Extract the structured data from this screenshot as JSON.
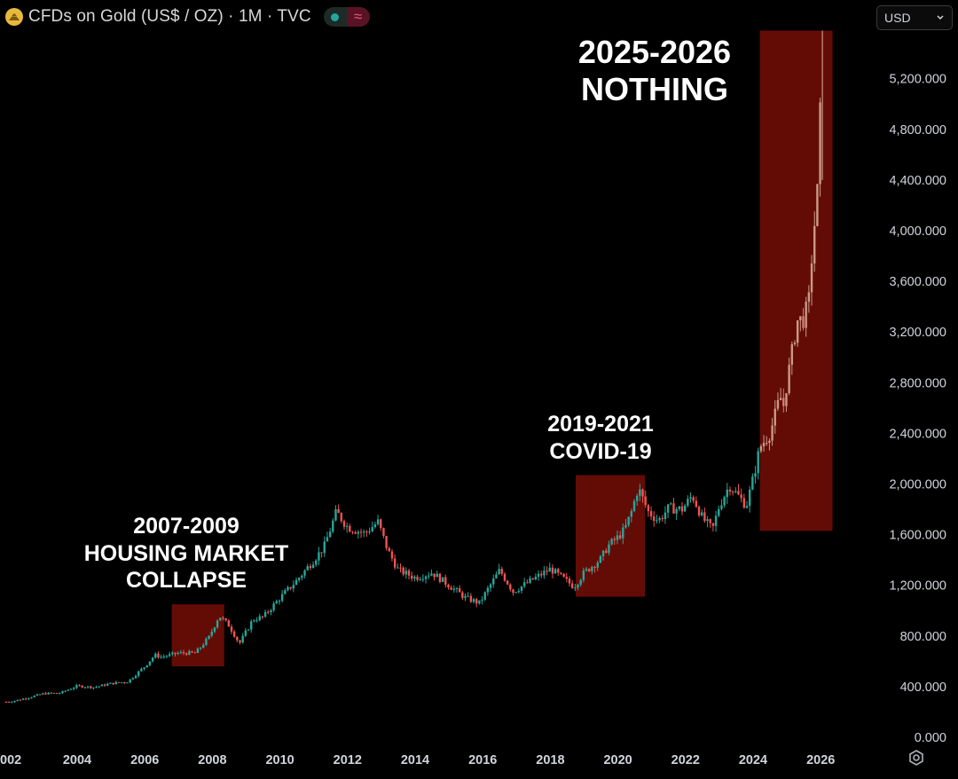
{
  "header": {
    "title": "CFDs on Gold (US$ / OZ) · 1M · TVC",
    "currency": "USD"
  },
  "colors": {
    "up": "#26a69a",
    "down": "#ef5350",
    "highlight": "#6e0d07",
    "background": "#000000",
    "axis_text": "#d1d4dc"
  },
  "icons": [
    "gold-logo-icon",
    "green-dot-icon",
    "wave-icon",
    "chevron-down-icon",
    "settings-icon"
  ],
  "chart_data": {
    "type": "candlestick",
    "interval": "1M",
    "y_ticks": [
      "0.000",
      "400.000",
      "800.000",
      "1,200.000",
      "1,600.000",
      "2,000.000",
      "2,400.000",
      "2,800.000",
      "3,200.000",
      "3,600.000",
      "4,000.000",
      "4,400.000",
      "4,800.000",
      "5,200.000"
    ],
    "x_ticks": [
      "002",
      "2004",
      "2006",
      "2008",
      "2010",
      "2012",
      "2014",
      "2016",
      "2018",
      "2020",
      "2022",
      "2024",
      "2026"
    ],
    "ylim": [
      0,
      5600
    ],
    "series": [
      {
        "values": [
          [
            2002.0,
            280
          ],
          [
            2002.5,
            310
          ],
          [
            2003.0,
            345
          ],
          [
            2003.5,
            350
          ],
          [
            2004.0,
            405
          ],
          [
            2004.5,
            395
          ],
          [
            2005.0,
            425
          ],
          [
            2005.5,
            440
          ],
          [
            2006.0,
            560
          ],
          [
            2006.3,
            650
          ],
          [
            2006.5,
            635
          ],
          [
            2007.0,
            665
          ],
          [
            2007.5,
            665
          ],
          [
            2007.9,
            790
          ],
          [
            2008.2,
            960
          ],
          [
            2008.5,
            880
          ],
          [
            2008.8,
            740
          ],
          [
            2009.2,
            930
          ],
          [
            2009.5,
            950
          ],
          [
            2010.0,
            1100
          ],
          [
            2010.5,
            1240
          ],
          [
            2011.0,
            1400
          ],
          [
            2011.3,
            1500
          ],
          [
            2011.67,
            1780
          ],
          [
            2012.0,
            1660
          ],
          [
            2012.5,
            1610
          ],
          [
            2012.9,
            1700
          ],
          [
            2013.2,
            1470
          ],
          [
            2013.5,
            1320
          ],
          [
            2014.0,
            1260
          ],
          [
            2014.5,
            1300
          ],
          [
            2015.0,
            1200
          ],
          [
            2015.5,
            1100
          ],
          [
            2015.9,
            1060
          ],
          [
            2016.5,
            1320
          ],
          [
            2016.9,
            1150
          ],
          [
            2017.5,
            1250
          ],
          [
            2018.0,
            1330
          ],
          [
            2018.7,
            1190
          ],
          [
            2019.0,
            1300
          ],
          [
            2019.5,
            1410
          ],
          [
            2019.7,
            1510
          ],
          [
            2020.0,
            1580
          ],
          [
            2020.2,
            1640
          ],
          [
            2020.4,
            1780
          ],
          [
            2020.6,
            1970
          ],
          [
            2020.9,
            1780
          ],
          [
            2021.2,
            1710
          ],
          [
            2021.5,
            1810
          ],
          [
            2021.9,
            1800
          ],
          [
            2022.2,
            1910
          ],
          [
            2022.5,
            1730
          ],
          [
            2022.8,
            1640
          ],
          [
            2023.0,
            1830
          ],
          [
            2023.3,
            1990
          ],
          [
            2023.8,
            1830
          ],
          [
            2024.0,
            2040
          ],
          [
            2024.2,
            2290
          ],
          [
            2024.5,
            2400
          ],
          [
            2024.8,
            2690
          ],
          [
            2024.9,
            2620
          ],
          [
            2025.0,
            2800
          ],
          [
            2025.2,
            3120
          ],
          [
            2025.3,
            3290
          ],
          [
            2025.5,
            3300
          ],
          [
            2025.65,
            3450
          ],
          [
            2025.75,
            3850
          ],
          [
            2025.8,
            4000
          ],
          [
            2025.9,
            4300
          ],
          [
            2025.95,
            4350
          ],
          [
            2026.0,
            5200
          ]
        ]
      }
    ],
    "annotations": [
      {
        "label_line1": "2007-2009",
        "label_line2": "HOUSING MARKET",
        "label_line3": "COLLAPSE",
        "x_start": 2006.8,
        "x_end": 2008.35,
        "y_low": 560,
        "y_high": 1050
      },
      {
        "label_line1": "2019-2021",
        "label_line2": "COVID-19",
        "x_start": 2018.75,
        "x_end": 2020.8,
        "y_low": 1110,
        "y_high": 2070
      },
      {
        "label_line1": "2025-2026",
        "label_line2": "NOTHING",
        "x_start": 2024.2,
        "x_end": 2026.35,
        "y_low": 1630,
        "y_high": 5580
      }
    ]
  }
}
